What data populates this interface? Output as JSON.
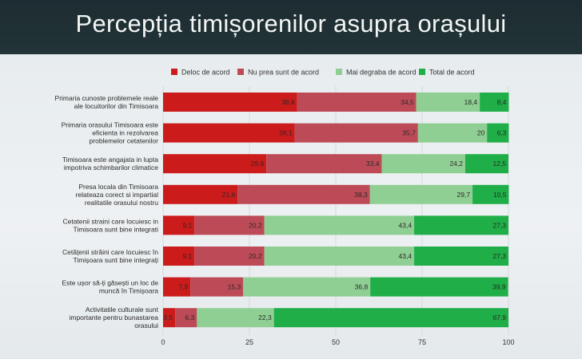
{
  "title": "Percepția timișorenilor asupra orașului",
  "colors": {
    "deloc": "#cc1b1b",
    "nuprea": "#bd4b57",
    "maidegraba": "#8fcf93",
    "total": "#1fae47"
  },
  "chart_data": {
    "type": "bar",
    "orientation": "horizontal",
    "stacked": true,
    "xlim": [
      0,
      100
    ],
    "ticks": [
      0,
      25,
      50,
      75,
      100
    ],
    "legend_position": "top",
    "categories": [
      [
        "Primaria cunoste problemele reale",
        "ale locuitorilor din Timisoara"
      ],
      [
        "Primaria orasului Timisoara este",
        "eficienta in rezolvarea",
        "problemelor cetatenilor"
      ],
      [
        "Timisoara este angajata in lupta",
        "impotriva schimbarilor climatice"
      ],
      [
        "Presa locala din Timisoara",
        "relateaza corect si impartial",
        "realitatile orasului nostru"
      ],
      [
        "Cetatenii straini care locuiesc in",
        "Timisoara sunt bine integrati"
      ],
      [
        "Cetățenii străini care locuiesc în",
        "Timișoara sunt bine integrați"
      ],
      [
        "Este ușor să-ți găsești un loc de",
        "muncă în Timișoara"
      ],
      [
        "Activitatile culturale sunt",
        "importante pentru bunastarea",
        "orasului"
      ]
    ],
    "series": [
      {
        "name": "Deloc de acord",
        "values": [
          38.8,
          38.1,
          29.9,
          21.6,
          9.1,
          9.1,
          7.9,
          3.5
        ],
        "labels": [
          "38,8",
          "38,1",
          "29,9",
          "21,6",
          "9,1",
          "9,1",
          "7,9",
          "3,5"
        ]
      },
      {
        "name": "Nu prea sunt de acord",
        "values": [
          34.5,
          35.7,
          33.4,
          38.3,
          20.2,
          20.2,
          15.3,
          6.3
        ],
        "labels": [
          "34,5",
          "35,7",
          "33,4",
          "38,3",
          "20,2",
          "20,2",
          "15,3",
          "6,3"
        ]
      },
      {
        "name": "Mai degraba de acord",
        "values": [
          18.4,
          20,
          24.2,
          29.7,
          43.4,
          43.4,
          36.8,
          22.3
        ],
        "labels": [
          "18,4",
          "20",
          "24,2",
          "29,7",
          "43,4",
          "43,4",
          "36,8",
          "22,3"
        ]
      },
      {
        "name": "Total de acord",
        "values": [
          8.4,
          6.3,
          12.5,
          10.5,
          27.3,
          27.3,
          39.9,
          67.9
        ],
        "labels": [
          "8,4",
          "6,3",
          "12,5",
          "10,5",
          "27,3",
          "27,3",
          "39,9",
          "67,9"
        ]
      }
    ]
  }
}
